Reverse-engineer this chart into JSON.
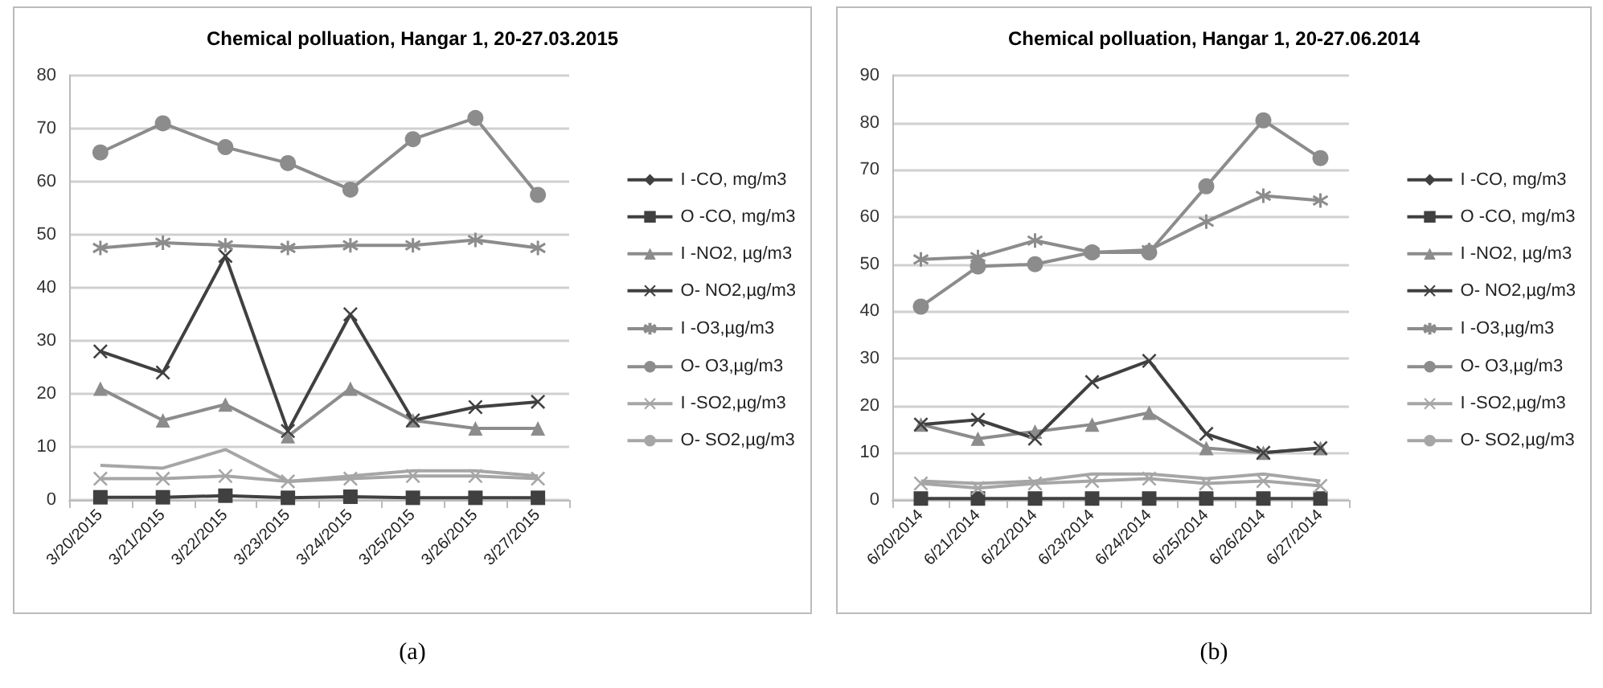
{
  "chart_data": [
    {
      "type": "line",
      "title": "Chemical polluation, Hangar 1, 20-27.03.2015",
      "categories": [
        "3/20/2015",
        "3/21/2015",
        "3/22/2015",
        "3/23/2015",
        "3/24/2015",
        "3/25/2015",
        "3/26/2015",
        "3/27/2015"
      ],
      "ylim": [
        0,
        80
      ],
      "yticks": [
        0,
        10,
        20,
        30,
        40,
        50,
        60,
        70,
        80
      ],
      "grid": "y",
      "legend": "right",
      "annotations": [
        "(a)"
      ],
      "series": [
        {
          "name": "I -CO, mg/m3",
          "color": "#404040",
          "marker": "diamond",
          "values": [
            null,
            null,
            null,
            null,
            null,
            null,
            null,
            null
          ]
        },
        {
          "name": "O -CO, mg/m3",
          "color": "#404040",
          "marker": "square",
          "values": [
            0.5,
            0.5,
            0.8,
            0.4,
            0.6,
            0.4,
            0.4,
            0.4
          ]
        },
        {
          "name": "I -NO2, µg/m3",
          "color": "#8c8c8c",
          "marker": "triangle",
          "values": [
            21,
            15,
            18,
            12,
            21,
            15,
            13.5,
            13.5
          ]
        },
        {
          "name": "O- NO2,µg/m3",
          "color": "#404040",
          "marker": "cross",
          "values": [
            28,
            24,
            46,
            13,
            35,
            15,
            17.5,
            18.5
          ]
        },
        {
          "name": "I -O3,µg/m3",
          "color": "#8c8c8c",
          "marker": "star",
          "values": [
            47.5,
            48.5,
            48,
            47.5,
            48,
            48,
            49,
            47.5
          ]
        },
        {
          "name": "O- O3,µg/m3",
          "color": "#8c8c8c",
          "marker": "circle",
          "values": [
            65.5,
            71,
            66.5,
            63.5,
            58.5,
            68,
            72,
            57.5
          ]
        },
        {
          "name": "I -SO2,µg/m3",
          "color": "#a6a6a6",
          "marker": "cross",
          "values": [
            4,
            4,
            4.5,
            3.5,
            4,
            4.5,
            4.5,
            4
          ]
        },
        {
          "name": "O- SO2,µg/m3",
          "color": "#a6a6a6",
          "marker": "none",
          "values": [
            6.5,
            6,
            9.5,
            3.5,
            4.5,
            5.5,
            5.5,
            4.5
          ]
        }
      ]
    },
    {
      "type": "line",
      "title": "Chemical polluation, Hangar 1, 20-27.06.2014",
      "categories": [
        "6/20/2014",
        "6/21/2014",
        "6/22/2014",
        "6/23/2014",
        "6/24/2014",
        "6/25/2014",
        "6/26/2014",
        "6/27/2014"
      ],
      "ylim": [
        0,
        90
      ],
      "yticks": [
        0,
        10,
        20,
        30,
        40,
        50,
        60,
        70,
        80,
        90
      ],
      "grid": "y",
      "legend": "right",
      "annotations": [
        "(b)"
      ],
      "series": [
        {
          "name": "I -CO, mg/m3",
          "color": "#404040",
          "marker": "diamond",
          "values": [
            null,
            null,
            null,
            null,
            null,
            null,
            null,
            null
          ]
        },
        {
          "name": "O -CO, mg/m3",
          "color": "#404040",
          "marker": "square",
          "values": [
            0.3,
            0.3,
            0.3,
            0.3,
            0.3,
            0.3,
            0.3,
            0.3
          ]
        },
        {
          "name": "I -NO2, µg/m3",
          "color": "#8c8c8c",
          "marker": "triangle",
          "values": [
            16,
            13,
            14.5,
            16,
            18.5,
            11,
            10,
            11
          ]
        },
        {
          "name": "O- NO2,µg/m3",
          "color": "#404040",
          "marker": "cross",
          "values": [
            16,
            17,
            13,
            25,
            29.5,
            14,
            10,
            11
          ]
        },
        {
          "name": "I -O3,µg/m3",
          "color": "#8c8c8c",
          "marker": "star",
          "values": [
            51,
            51.5,
            55,
            52.5,
            53,
            59,
            64.5,
            63.5
          ]
        },
        {
          "name": "O- O3,µg/m3",
          "color": "#8c8c8c",
          "marker": "circle",
          "values": [
            41,
            49.5,
            50,
            52.5,
            52.5,
            66.5,
            80.5,
            72.5
          ]
        },
        {
          "name": "I -SO2,µg/m3",
          "color": "#a6a6a6",
          "marker": "cross",
          "values": [
            3.5,
            2.5,
            3.5,
            4,
            4.5,
            3.5,
            4,
            3
          ]
        },
        {
          "name": "O- SO2,µg/m3",
          "color": "#a6a6a6",
          "marker": "none",
          "values": [
            4,
            3.5,
            4,
            5.5,
            5.5,
            4.5,
            5.5,
            4
          ]
        }
      ]
    }
  ]
}
